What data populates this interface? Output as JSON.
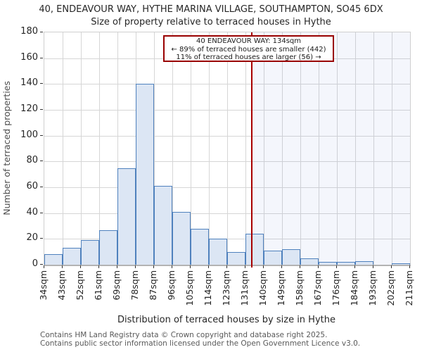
{
  "header": {
    "title_line1": "40, ENDEAVOUR WAY, HYTHE MARINA VILLAGE, SOUTHAMPTON, SO45 6DX",
    "title_line2": "Size of property relative to terraced houses in Hythe"
  },
  "annotation": {
    "line1": "40 ENDEAVOUR WAY: 134sqm",
    "line2": "← 89% of terraced houses are smaller (442)",
    "line3": "11% of terraced houses are larger (56) →"
  },
  "footer": {
    "line1": "Contains HM Land Registry data © Crown copyright and database right 2025.",
    "line2": "Contains public sector information licensed under the Open Government Licence v3.0."
  },
  "chart_data": {
    "type": "bar",
    "title": "40, ENDEAVOUR WAY, HYTHE MARINA VILLAGE, SOUTHAMPTON, SO45 6DX",
    "subtitle": "Size of property relative to terraced houses in Hythe",
    "xlabel": "Distribution of terraced houses by size in Hythe",
    "ylabel": "Number of terraced properties",
    "ylim": [
      0,
      180
    ],
    "ytick_interval": 20,
    "grid": true,
    "categories": [
      "34sqm",
      "43sqm",
      "52sqm",
      "61sqm",
      "69sqm",
      "78sqm",
      "87sqm",
      "96sqm",
      "105sqm",
      "114sqm",
      "123sqm",
      "131sqm",
      "140sqm",
      "149sqm",
      "158sqm",
      "167sqm",
      "176sqm",
      "184sqm",
      "193sqm",
      "202sqm",
      "211sqm"
    ],
    "bin_edges_sqm": [
      34,
      43,
      52,
      61,
      69,
      78,
      87,
      96,
      105,
      114,
      123,
      131,
      140,
      149,
      158,
      167,
      176,
      184,
      193,
      202,
      211
    ],
    "values": [
      8,
      13,
      19,
      27,
      75,
      140,
      61,
      41,
      28,
      20,
      10,
      24,
      11,
      12,
      5,
      2,
      2,
      3,
      0,
      1
    ],
    "marker": {
      "value_sqm": 134,
      "smaller_count": 442,
      "larger_count": 56,
      "smaller_pct": 89,
      "larger_pct": 11
    }
  },
  "colors": {
    "bar_fill": "#dce6f4",
    "bar_border": "#4f81bd",
    "marker_line": "#a80000",
    "annotation_border": "#990000",
    "gridline": "#d6d6d6",
    "shade_region": "rgba(110,145,220,0.08)"
  }
}
